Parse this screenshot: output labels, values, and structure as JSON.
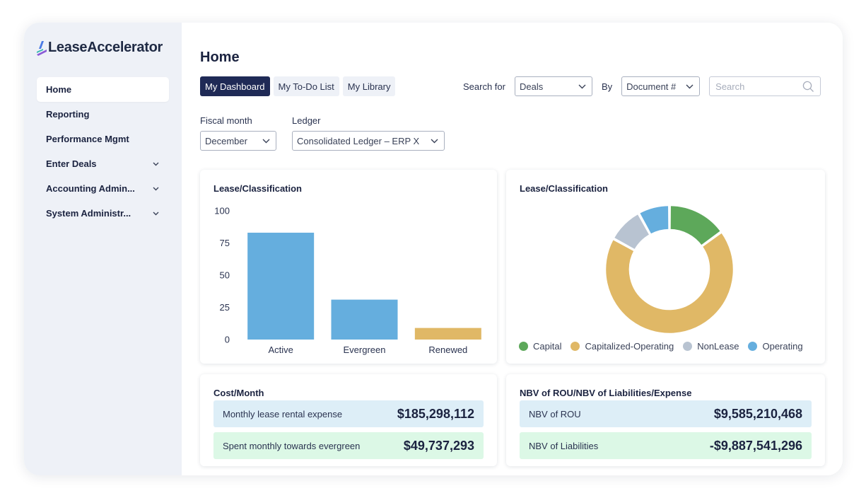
{
  "app": {
    "logo_text": "LeaseAccelerator"
  },
  "sidebar": {
    "items": [
      {
        "label": "Home",
        "active": true,
        "expandable": false
      },
      {
        "label": "Reporting",
        "active": false,
        "expandable": false
      },
      {
        "label": "Performance Mgmt",
        "active": false,
        "expandable": false
      },
      {
        "label": "Enter Deals",
        "active": false,
        "expandable": true
      },
      {
        "label": "Accounting Admin...",
        "active": false,
        "expandable": true
      },
      {
        "label": "System Administr...",
        "active": false,
        "expandable": true
      }
    ]
  },
  "header": {
    "title": "Home"
  },
  "tabs": [
    {
      "label": "My Dashboard",
      "active": true
    },
    {
      "label": "My To-Do List",
      "active": false
    },
    {
      "label": "My Library",
      "active": false
    }
  ],
  "search": {
    "search_for_label": "Search for",
    "search_for_value": "Deals",
    "by_label": "By",
    "by_value": "Document #",
    "placeholder": "Search",
    "value": ""
  },
  "filters": {
    "fiscal_month_label": "Fiscal month",
    "fiscal_month_value": "December",
    "ledger_label": "Ledger",
    "ledger_value": "Consolidated Ledger – ERP X"
  },
  "bar_card": {
    "title": "Lease/Classification"
  },
  "donut_card": {
    "title": "Lease/Classification"
  },
  "chart_data": [
    {
      "type": "bar",
      "categories": [
        "Active",
        "Evergreen",
        "Renewed"
      ],
      "values": [
        83,
        31,
        9
      ],
      "colors": [
        "#65aede",
        "#65aede",
        "#e0b866"
      ],
      "yticks": [
        "0",
        "25",
        "50",
        "75",
        "100"
      ],
      "ylim": [
        0,
        100
      ],
      "grid": false
    },
    {
      "type": "pie",
      "donut": true,
      "categories": [
        "Capital",
        "Capitalized-Operating",
        "NonLease",
        "Operating"
      ],
      "values": [
        15,
        68,
        9,
        8
      ],
      "order_clockwise_from_top": [
        "Capital",
        "Capitalized-Operating",
        "NonLease",
        "Operating"
      ],
      "colors": [
        "#5da85a",
        "#e0b866",
        "#b8c3d1",
        "#65aede"
      ],
      "legend_position": "bottom"
    }
  ],
  "cost_card": {
    "title": "Cost/Month",
    "metrics": [
      {
        "label": "Monthly lease rental expense",
        "value": "$185,298,112"
      },
      {
        "label": "Spent monthly towards evergreen",
        "value": "$49,737,293"
      }
    ]
  },
  "nbv_card": {
    "title": "NBV of ROU/NBV of Liabilities/Expense",
    "metrics": [
      {
        "label": "NBV of ROU",
        "value": "$9,585,210,468"
      },
      {
        "label": "NBV of Liabilities",
        "value": "-$9,887,541,296"
      }
    ]
  },
  "icons": {
    "logo": "leaseaccelerator-logo-icon",
    "chevron": "chevron-down-icon",
    "search": "search-icon"
  }
}
